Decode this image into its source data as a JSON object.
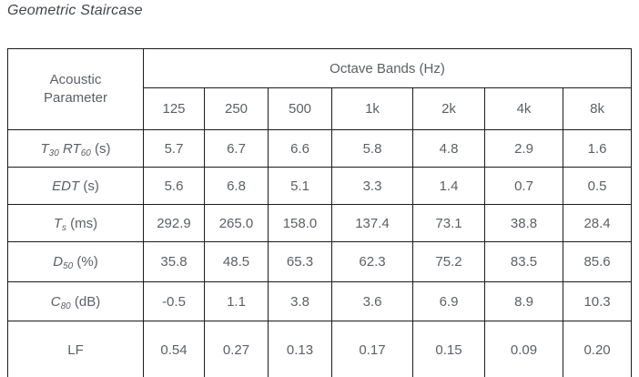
{
  "title": "Geometric Staircase",
  "colors": {
    "table_text": "#5c6066",
    "title_text": "#41454b",
    "border": "#1b1b1b",
    "background": "#ffffff"
  },
  "table": {
    "header": {
      "param": "Acoustic Parameter",
      "octave": "Octave Bands (Hz)",
      "bands": [
        "125",
        "250",
        "500",
        "1k",
        "2k",
        "4k",
        "8k"
      ]
    },
    "rows": [
      {
        "param": [
          {
            "t": "T",
            "i": true
          },
          {
            "t": "30",
            "i": true,
            "s": true
          },
          {
            "t": " "
          },
          {
            "t": "RT",
            "i": true
          },
          {
            "t": "60",
            "i": true,
            "s": true
          },
          {
            "t": " (s)"
          }
        ],
        "param_text": "T30 RT60 (s)",
        "values": [
          "5.7",
          "6.7",
          "6.6",
          "5.8",
          "4.8",
          "2.9",
          "1.6"
        ]
      },
      {
        "param": [
          {
            "t": "EDT",
            "i": true
          },
          {
            "t": " (s)"
          }
        ],
        "param_text": "EDT (s)",
        "values": [
          "5.6",
          "6.8",
          "5.1",
          "3.3",
          "1.4",
          "0.7",
          "0.5"
        ]
      },
      {
        "param": [
          {
            "t": "T",
            "i": true
          },
          {
            "t": "s",
            "i": true,
            "s": true
          },
          {
            "t": " (ms)"
          }
        ],
        "param_text": "Ts (ms)",
        "values": [
          "292.9",
          "265.0",
          "158.0",
          "137.4",
          "73.1",
          "38.8",
          "28.4"
        ]
      },
      {
        "param": [
          {
            "t": "D",
            "i": true
          },
          {
            "t": "50",
            "i": true,
            "s": true
          },
          {
            "t": " (%)"
          }
        ],
        "param_text": "D50 (%)",
        "values": [
          "35.8",
          "48.5",
          "65.3",
          "62.3",
          "75.2",
          "83.5",
          "85.6"
        ]
      },
      {
        "param": [
          {
            "t": "C",
            "i": true
          },
          {
            "t": "80",
            "i": true,
            "s": true
          },
          {
            "t": " (dB)"
          }
        ],
        "param_text": "C80 (dB)",
        "values": [
          "-0.5",
          "1.1",
          "3.8",
          "3.6",
          "6.9",
          "8.9",
          "10.3"
        ]
      },
      {
        "param": [
          {
            "t": "LF"
          }
        ],
        "param_text": "LF",
        "values": [
          "0.54",
          "0.27",
          "0.13",
          "0.17",
          "0.15",
          "0.09",
          "0.20"
        ]
      }
    ]
  }
}
